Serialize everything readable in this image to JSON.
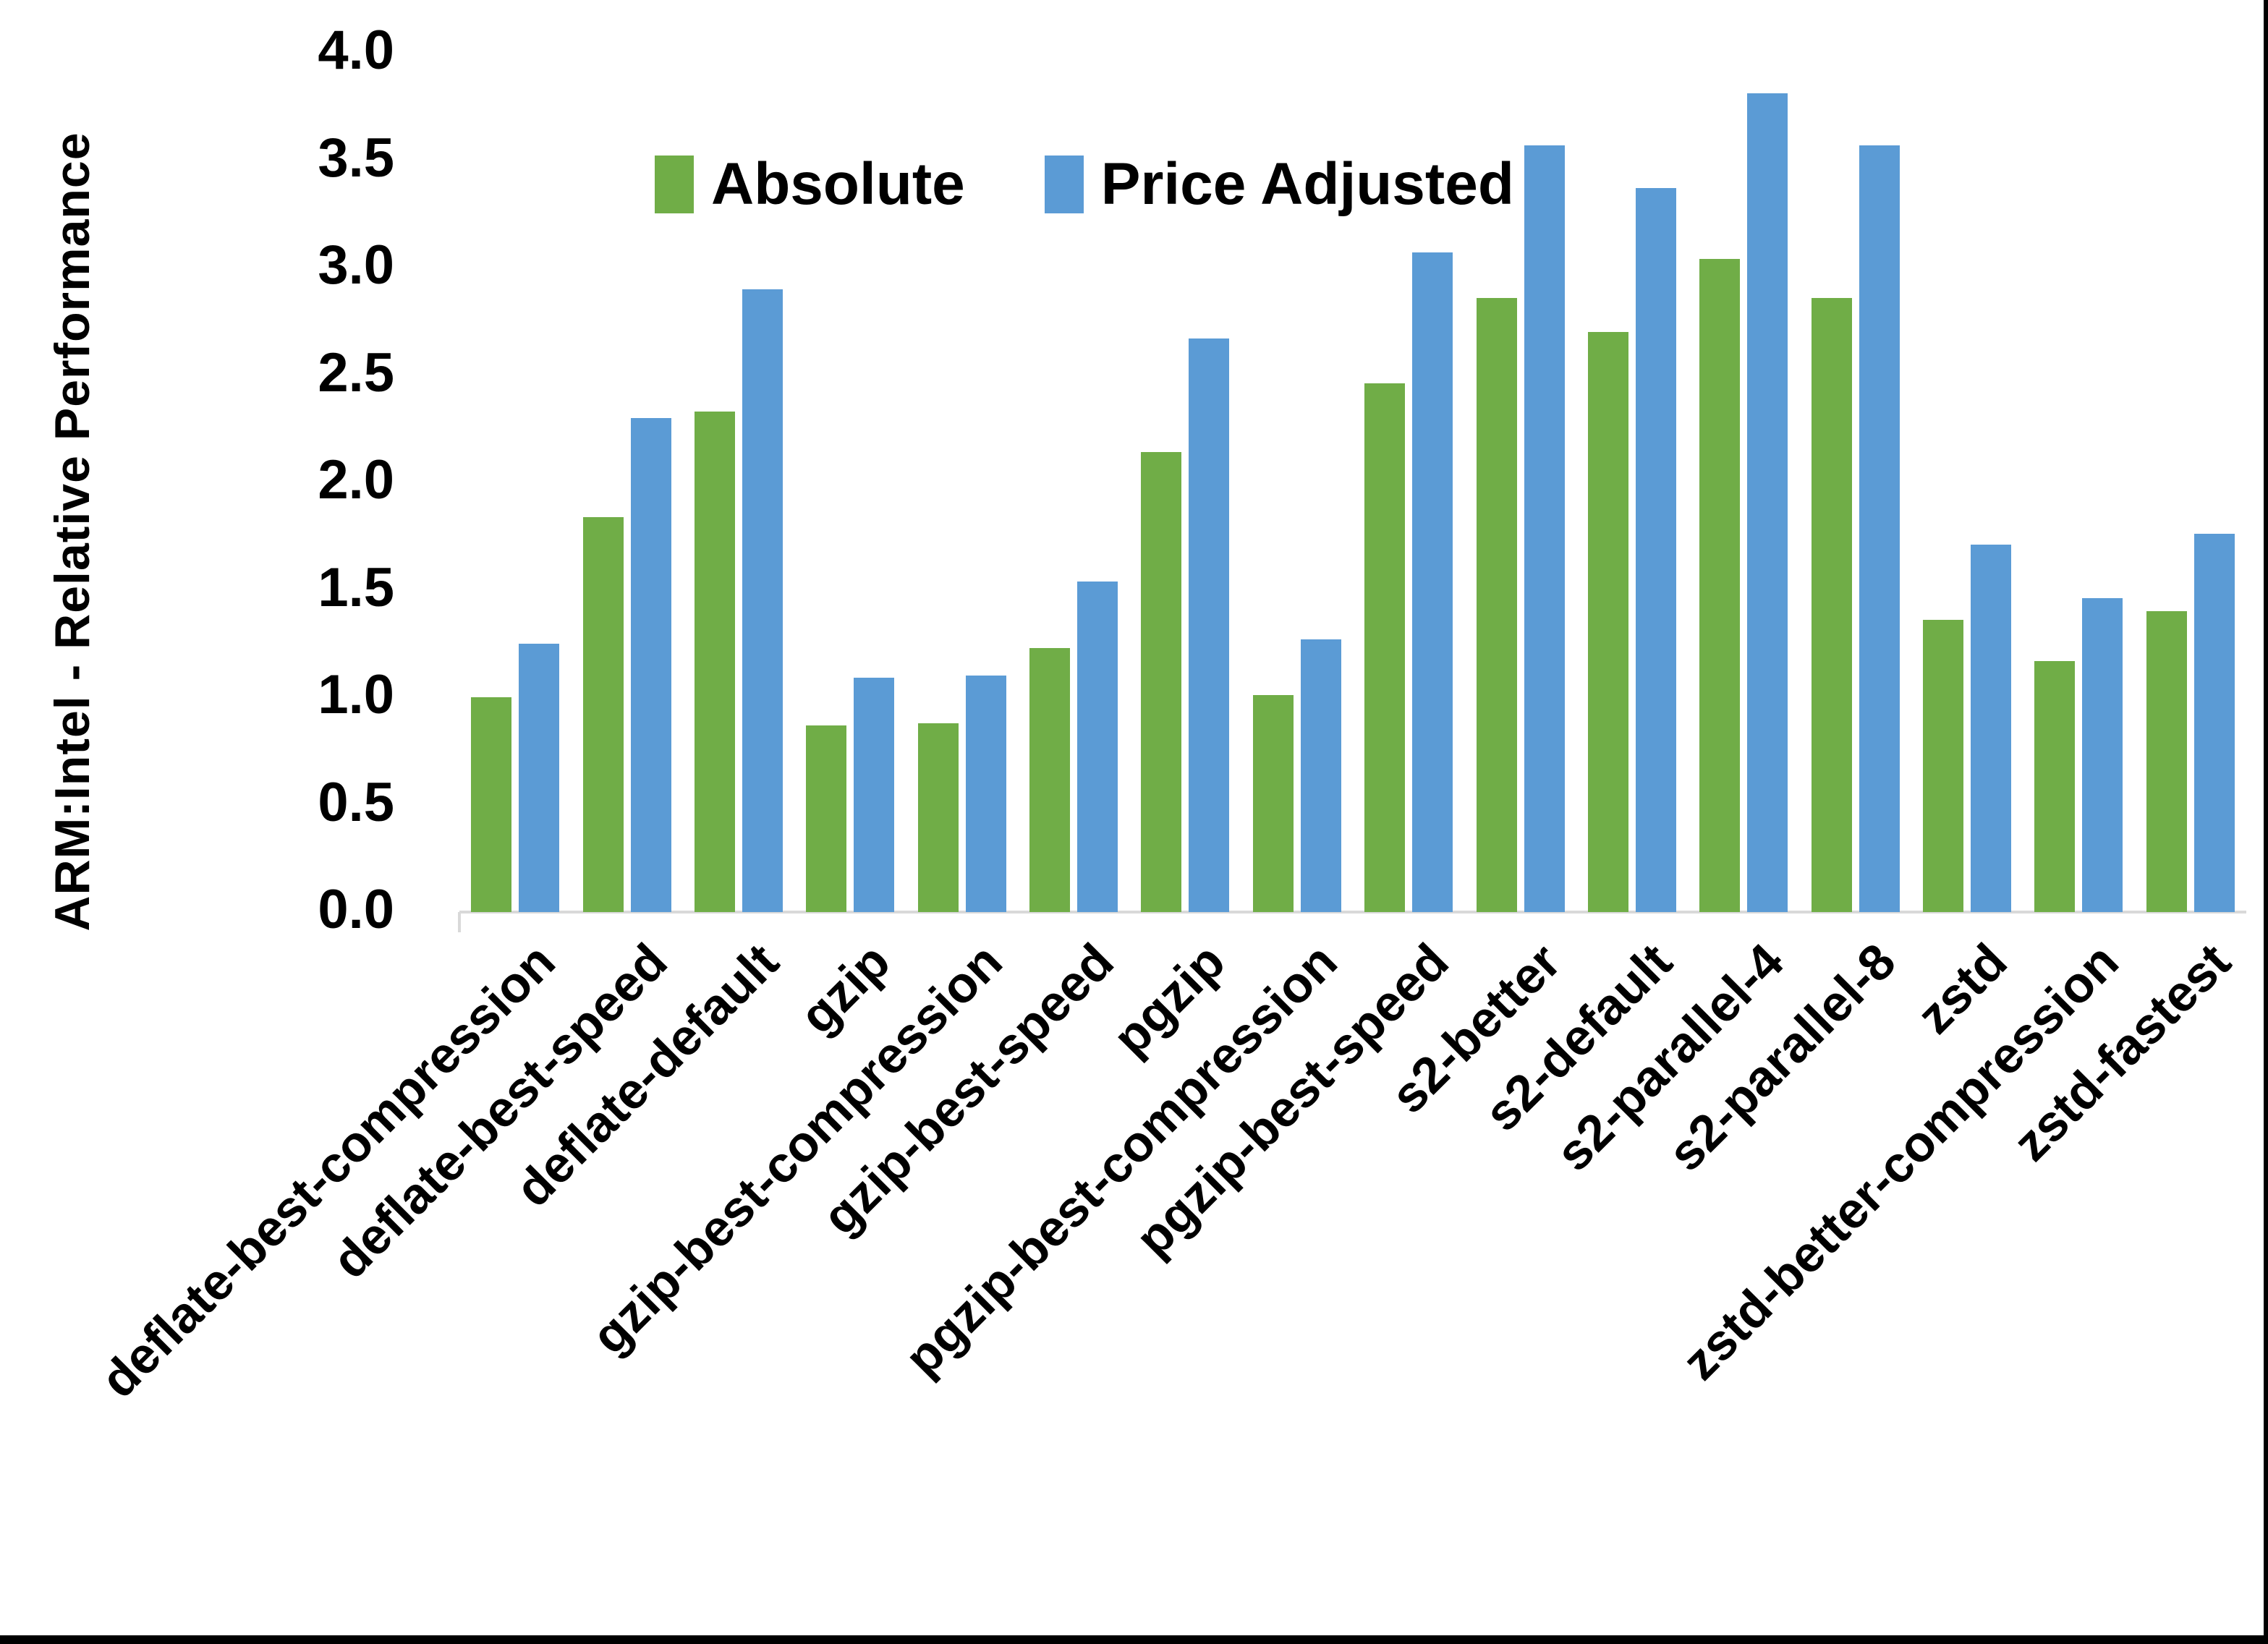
{
  "chart_data": {
    "type": "bar",
    "title": "",
    "ylabel": "ARM:Intel - Relative Performance",
    "xlabel": "",
    "ylim": [
      0.0,
      4.0
    ],
    "ytick_labels": [
      "0.0",
      "0.5",
      "1.0",
      "1.5",
      "2.0",
      "2.5",
      "3.0",
      "3.5",
      "4.0"
    ],
    "grid": false,
    "legend_position": "top-center",
    "categories": [
      "deflate-best-compression",
      "deflate-best-speed",
      "deflate-default",
      "gzip",
      "gzip-best-compression",
      "gzip-best-speed",
      "pgzip",
      "pgzip-best-compression",
      "pgzip-best-speed",
      "s2-better",
      "s2-default",
      "s2-parallel-4",
      "s2-parallel-8",
      "zstd",
      "zstd-better-compression",
      "zstd-fastest"
    ],
    "series": [
      {
        "name": "Absolute",
        "color": "#70AD47",
        "values": [
          1.0,
          1.84,
          2.33,
          0.87,
          0.88,
          1.23,
          2.14,
          1.01,
          2.46,
          2.86,
          2.7,
          3.04,
          2.86,
          1.36,
          1.17,
          1.4
        ]
      },
      {
        "name": "Price Adjusted",
        "color": "#5B9BD5",
        "values": [
          1.25,
          2.3,
          2.9,
          1.09,
          1.1,
          1.54,
          2.67,
          1.27,
          3.07,
          3.57,
          3.37,
          3.81,
          3.57,
          1.71,
          1.46,
          1.76
        ]
      }
    ],
    "axis_color": "#D9D9D9",
    "text_color": "#000000",
    "border_color": "#000000"
  }
}
